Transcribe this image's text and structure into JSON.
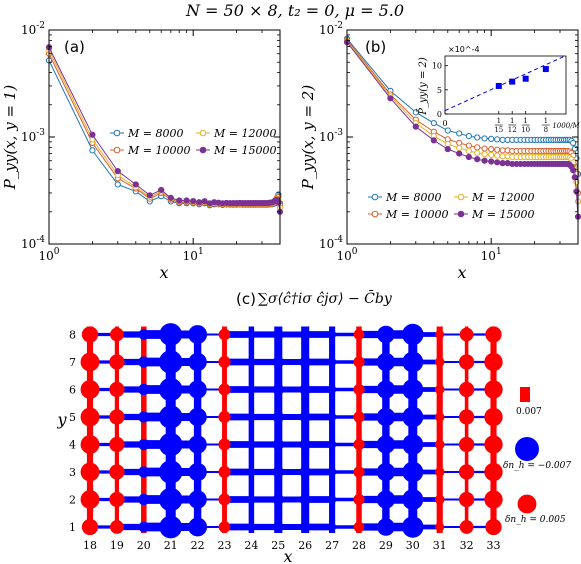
{
  "figure_title": "N = 50 × 8, t₂ = 0, μ = 5.0",
  "chart_data": [
    {
      "id": "a",
      "type": "line",
      "panel_label": "(a)",
      "xlabel": "x",
      "ylabel": "P_yy(x, y = 1)",
      "xscale": "log",
      "yscale": "log",
      "xlim": [
        1,
        40
      ],
      "ylim": [
        0.0001,
        0.01
      ],
      "x_ticks": [
        "10^0",
        "10^1"
      ],
      "y_ticks": [
        "10^-4",
        "10^-3",
        "10^-2"
      ],
      "legend": "center-right, 2 columns",
      "x": [
        1,
        2,
        3,
        4,
        5,
        6,
        7,
        8,
        9,
        10,
        11,
        12,
        13,
        14,
        15,
        16,
        17,
        18,
        19,
        20,
        21,
        22,
        23,
        24,
        25,
        26,
        27,
        28,
        29,
        30,
        31,
        32,
        33,
        34,
        35,
        36,
        37,
        38,
        39,
        40
      ],
      "series": [
        {
          "name": "M = 8000",
          "color": "#1f77b4",
          "values": [
            0.0052,
            0.00075,
            0.00036,
            0.00031,
            0.00025,
            0.00028,
            0.00025,
            0.00024,
            0.00024,
            0.00024,
            0.000235,
            0.00024,
            0.00023,
            0.000235,
            0.000235,
            0.000232,
            0.000234,
            0.000233,
            0.000233,
            0.000233,
            0.000234,
            0.000233,
            0.000233,
            0.000233,
            0.000233,
            0.000233,
            0.000233,
            0.000233,
            0.000233,
            0.000233,
            0.000233,
            0.000233,
            0.000233,
            0.000235,
            0.000235,
            0.000237,
            0.00024,
            0.00026,
            0.00029,
            0.00024
          ]
        },
        {
          "name": "M = 10000",
          "color": "#d95f30",
          "values": [
            0.006,
            0.00088,
            0.00041,
            0.00033,
            0.000265,
            0.0003,
            0.00026,
            0.000245,
            0.000245,
            0.000243,
            0.000238,
            0.000243,
            0.000233,
            0.000238,
            0.000236,
            0.000234,
            0.000236,
            0.000235,
            0.000235,
            0.000235,
            0.000236,
            0.000235,
            0.000235,
            0.000235,
            0.000235,
            0.000235,
            0.000235,
            0.000235,
            0.000235,
            0.000235,
            0.000235,
            0.000235,
            0.000235,
            0.000236,
            0.000236,
            0.00024,
            0.000245,
            0.00027,
            0.000275,
            0.00023
          ]
        },
        {
          "name": "M = 12000",
          "color": "#e6b020",
          "values": [
            0.0065,
            0.00095,
            0.00044,
            0.00034,
            0.000275,
            0.00031,
            0.000265,
            0.00025,
            0.00025,
            0.000248,
            0.000242,
            0.000247,
            0.000236,
            0.000242,
            0.00024,
            0.000237,
            0.000239,
            0.000238,
            0.000238,
            0.000238,
            0.000239,
            0.000238,
            0.000238,
            0.000238,
            0.000238,
            0.000238,
            0.000238,
            0.000238,
            0.000238,
            0.000238,
            0.000238,
            0.000238,
            0.000238,
            0.00024,
            0.00024,
            0.000244,
            0.00025,
            0.000265,
            0.00026,
            0.00022
          ]
        },
        {
          "name": "M = 15000",
          "color": "#7b3294",
          "values": [
            0.0069,
            0.00105,
            0.00048,
            0.00036,
            0.000285,
            0.00032,
            0.00027,
            0.000255,
            0.000255,
            0.000252,
            0.000246,
            0.000251,
            0.00024,
            0.000246,
            0.000243,
            0.00024,
            0.000242,
            0.000241,
            0.000241,
            0.000241,
            0.000242,
            0.000241,
            0.000241,
            0.000241,
            0.000241,
            0.000241,
            0.000241,
            0.000241,
            0.000241,
            0.000241,
            0.000241,
            0.000241,
            0.000241,
            0.000243,
            0.000244,
            0.000248,
            0.000255,
            0.00026,
            0.000245,
            0.0002
          ]
        }
      ]
    },
    {
      "id": "b",
      "type": "line",
      "panel_label": "(b)",
      "xlabel": "x",
      "ylabel": "P_yy(x, y = 2)",
      "xscale": "log",
      "yscale": "log",
      "xlim": [
        1,
        40
      ],
      "ylim": [
        0.0001,
        0.01
      ],
      "x_ticks": [
        "10^0",
        "10^1"
      ],
      "y_ticks": [
        "10^-4",
        "10^-3",
        "10^-2"
      ],
      "legend": "lower-center, 2 columns",
      "x": [
        1,
        2,
        3,
        4,
        5,
        6,
        7,
        8,
        9,
        10,
        11,
        12,
        13,
        14,
        15,
        16,
        17,
        18,
        19,
        20,
        21,
        22,
        23,
        24,
        25,
        26,
        27,
        28,
        29,
        30,
        31,
        32,
        33,
        34,
        35,
        36,
        37,
        38,
        39,
        40
      ],
      "series": [
        {
          "name": "M = 8000",
          "color": "#1f77b4",
          "values": [
            0.0083,
            0.0027,
            0.0017,
            0.00135,
            0.00115,
            0.00108,
            0.00102,
            0.00099,
            0.00097,
            0.00096,
            0.00095,
            0.00094,
            0.00094,
            0.00094,
            0.00094,
            0.00094,
            0.00094,
            0.00094,
            0.00094,
            0.00094,
            0.00094,
            0.00094,
            0.00094,
            0.00094,
            0.00094,
            0.00094,
            0.00094,
            0.00094,
            0.00094,
            0.00094,
            0.00094,
            0.00094,
            0.00094,
            0.00094,
            0.00094,
            0.00092,
            0.00088,
            0.00078,
            0.00063,
            0.00045
          ]
        },
        {
          "name": "M = 10000",
          "color": "#d95f30",
          "values": [
            0.0081,
            0.0025,
            0.00145,
            0.00112,
            0.00095,
            0.00088,
            0.00083,
            0.0008,
            0.00078,
            0.00077,
            0.00076,
            0.00075,
            0.00075,
            0.00074,
            0.00074,
            0.00074,
            0.00074,
            0.00074,
            0.00074,
            0.00074,
            0.00074,
            0.00074,
            0.00074,
            0.00074,
            0.00074,
            0.00074,
            0.00074,
            0.00074,
            0.00074,
            0.00074,
            0.00074,
            0.00074,
            0.00074,
            0.00074,
            0.00073,
            0.00071,
            0.00067,
            0.00058,
            0.00045,
            0.0003
          ]
        },
        {
          "name": "M = 12000",
          "color": "#e6b020",
          "values": [
            0.0079,
            0.0024,
            0.00135,
            0.00102,
            0.00086,
            0.00079,
            0.00074,
            0.00071,
            0.00069,
            0.00068,
            0.00067,
            0.00066,
            0.00066,
            0.00065,
            0.00065,
            0.00065,
            0.00065,
            0.00065,
            0.00065,
            0.00065,
            0.00065,
            0.00065,
            0.00065,
            0.00065,
            0.00065,
            0.00065,
            0.00065,
            0.00065,
            0.00065,
            0.00065,
            0.00065,
            0.00065,
            0.00065,
            0.00065,
            0.00064,
            0.00062,
            0.00058,
            0.0005,
            0.00038,
            0.00025
          ]
        },
        {
          "name": "M = 15000",
          "color": "#7b3294",
          "values": [
            0.0077,
            0.0023,
            0.00125,
            0.00093,
            0.00077,
            0.0007,
            0.00065,
            0.00062,
            0.0006,
            0.00059,
            0.00058,
            0.00057,
            0.00057,
            0.00056,
            0.00056,
            0.00056,
            0.00056,
            0.00056,
            0.00056,
            0.00056,
            0.00056,
            0.00056,
            0.00056,
            0.00056,
            0.00056,
            0.00056,
            0.00056,
            0.00056,
            0.00056,
            0.00056,
            0.00056,
            0.00056,
            0.00056,
            0.00056,
            0.00055,
            0.00053,
            0.00049,
            0.00042,
            0.00031,
            0.00018
          ]
        }
      ],
      "inset": {
        "type": "scatter",
        "ylabel": "P̄_yy(y = 2)",
        "xlabel": "1000/M",
        "y_exponent_label": "×10^-4",
        "y_ticks": [
          "0",
          "5",
          "10"
        ],
        "ylim": [
          0,
          12
        ],
        "xlim": [
          0,
          0.15
        ],
        "x_tick_values": [
          0,
          0.0667,
          0.0833,
          0.1,
          0.125
        ],
        "x_ticks": [
          "0",
          "1/15",
          "1/12",
          "1/10",
          "1/8"
        ],
        "points": [
          {
            "x": 0.0667,
            "y": 5.8
          },
          {
            "x": 0.0833,
            "y": 6.7
          },
          {
            "x": 0.1,
            "y": 7.3
          },
          {
            "x": 0.125,
            "y": 9.3
          }
        ],
        "fit": {
          "intercept": 0.7,
          "slope": 76
        },
        "color": "#0000ee"
      }
    },
    {
      "id": "c",
      "type": "lattice",
      "panel_label": "(c)",
      "title": "∑σ⟨ĉ†iσ ĉjσ⟩ − C̄by",
      "xlabel": "x",
      "ylabel": "y",
      "x_ticks": [
        "18",
        "19",
        "20",
        "21",
        "22",
        "23",
        "24",
        "25",
        "26",
        "27",
        "28",
        "29",
        "30",
        "31",
        "32",
        "33"
      ],
      "y_ticks": [
        "1",
        "2",
        "3",
        "4",
        "5",
        "6",
        "7",
        "8"
      ],
      "positive_color": "#ff0000",
      "negative_color": "#0000ff",
      "hole_density_deviation": [
        [
          0.004,
          0.003,
          -0.0018,
          -0.0065,
          -0.005,
          0.0022,
          -0.0005,
          -0.0018,
          -0.0018,
          -0.0008,
          0.0018,
          -0.0045,
          -0.006,
          0.0012,
          0.003,
          0.004
        ],
        [
          0.005,
          0.0036,
          -0.002,
          -0.0068,
          -0.0048,
          0.0024,
          -0.0006,
          -0.002,
          -0.002,
          -0.0009,
          0.002,
          -0.0048,
          -0.0058,
          0.0014,
          0.0036,
          0.0048
        ],
        [
          0.005,
          0.0036,
          -0.002,
          -0.0068,
          -0.0048,
          0.0024,
          -0.0006,
          -0.002,
          -0.002,
          -0.0009,
          0.002,
          -0.0048,
          -0.0058,
          0.0014,
          0.0036,
          0.0048
        ],
        [
          0.005,
          0.0036,
          -0.002,
          -0.0068,
          -0.0048,
          0.0024,
          -0.0006,
          -0.002,
          -0.002,
          -0.0009,
          0.002,
          -0.0048,
          -0.0058,
          0.0014,
          0.0036,
          0.0048
        ],
        [
          0.005,
          0.0036,
          -0.002,
          -0.0068,
          -0.0048,
          0.0024,
          -0.0006,
          -0.002,
          -0.002,
          -0.0009,
          0.002,
          -0.0048,
          -0.0058,
          0.0014,
          0.0036,
          0.0048
        ],
        [
          0.005,
          0.0036,
          -0.002,
          -0.0068,
          -0.0048,
          0.0024,
          -0.0006,
          -0.002,
          -0.002,
          -0.0009,
          0.002,
          -0.0048,
          -0.0058,
          0.0014,
          0.0036,
          0.0048
        ],
        [
          0.005,
          0.0036,
          -0.002,
          -0.0068,
          -0.0048,
          0.0024,
          -0.0006,
          -0.002,
          -0.002,
          -0.0009,
          0.002,
          -0.0048,
          -0.0058,
          0.0014,
          0.0036,
          0.0048
        ],
        [
          0.004,
          0.003,
          -0.0018,
          -0.0065,
          -0.005,
          0.0022,
          -0.0005,
          -0.0018,
          -0.0018,
          -0.0008,
          0.0018,
          -0.0045,
          -0.006,
          0.0012,
          0.003,
          0.004
        ]
      ],
      "horizontal_bond_values": [
        -0.0018,
        -0.004,
        -0.006,
        -0.0055,
        -0.0008,
        -0.0045,
        -0.004,
        -0.0038,
        -0.0045,
        -0.002,
        -0.0048,
        -0.0058,
        -0.003,
        -0.0008,
        -0.001
      ],
      "vertical_bond_values": [
        0.004,
        0.0025,
        0.0035,
        -0.007,
        -0.005,
        0.003,
        -0.0035,
        -0.0055,
        -0.0055,
        -0.004,
        0.0035,
        -0.005,
        -0.0062,
        0.004,
        0.002,
        0.004
      ],
      "legend": [
        {
          "kind": "bond",
          "label": "0.007",
          "value": 0.007
        },
        {
          "kind": "site",
          "label": "δn_h = −0.007",
          "value": -0.007
        },
        {
          "kind": "site",
          "label": "δn_h = 0.005",
          "value": 0.005
        }
      ]
    }
  ]
}
